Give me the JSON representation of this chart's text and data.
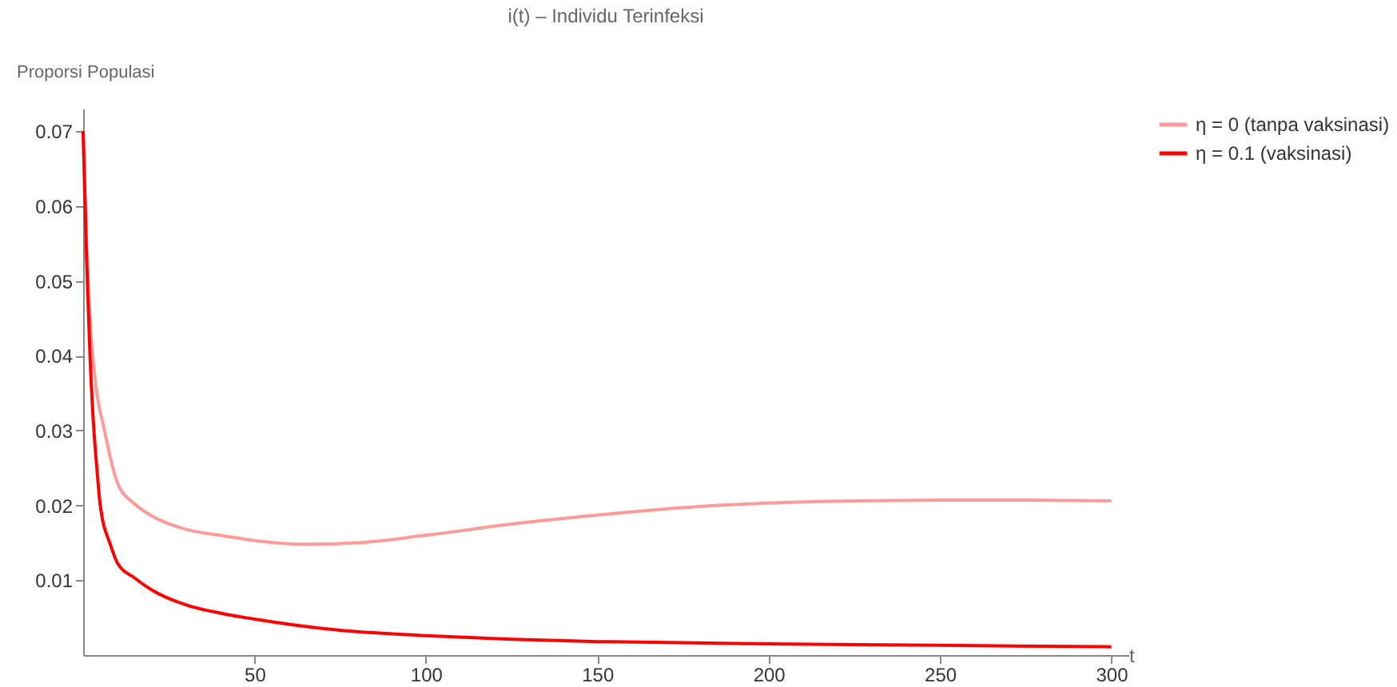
{
  "chart_data": {
    "type": "line",
    "title": "i(t) – Individu Terinfeksi",
    "xlabel": "t",
    "ylabel": "Proporsi Populasi",
    "xlim": [
      0,
      305
    ],
    "ylim": [
      0,
      0.073
    ],
    "xticks": [
      50,
      100,
      150,
      200,
      250,
      300
    ],
    "yticks": [
      0.01,
      0.02,
      0.03,
      0.04,
      0.05,
      0.06,
      0.07
    ],
    "grid": false,
    "legend": "right",
    "marker": "none",
    "line_style": "solid",
    "series": [
      {
        "name": "η = 0 (tanpa vaksinasi)",
        "color": "#ff9a9a",
        "x": [
          0,
          1,
          2,
          3,
          4,
          6,
          10,
          15,
          20,
          30,
          40,
          50,
          65,
          80,
          100,
          125,
          150,
          175,
          200,
          225,
          250,
          275,
          300
        ],
        "values": [
          0.07,
          0.055,
          0.045,
          0.039,
          0.035,
          0.0305,
          0.023,
          0.0202,
          0.0186,
          0.0168,
          0.016,
          0.0153,
          0.0148,
          0.015,
          0.016,
          0.0175,
          0.0187,
          0.0197,
          0.0203,
          0.0206,
          0.0207,
          0.0207,
          0.0206
        ]
      },
      {
        "name": "η = 0.1 (vaksinasi)",
        "color": "#ff0000",
        "x": [
          0,
          1,
          2,
          3,
          4,
          5,
          8,
          10,
          15,
          20,
          30,
          40,
          50,
          75,
          100,
          125,
          150,
          200,
          250,
          300
        ],
        "values": [
          0.07,
          0.053,
          0.04,
          0.031,
          0.025,
          0.02,
          0.0147,
          0.0123,
          0.0103,
          0.0087,
          0.0067,
          0.0056,
          0.0048,
          0.0033,
          0.0026,
          0.0021,
          0.0018,
          0.0015,
          0.0013,
          0.0011
        ]
      }
    ]
  }
}
